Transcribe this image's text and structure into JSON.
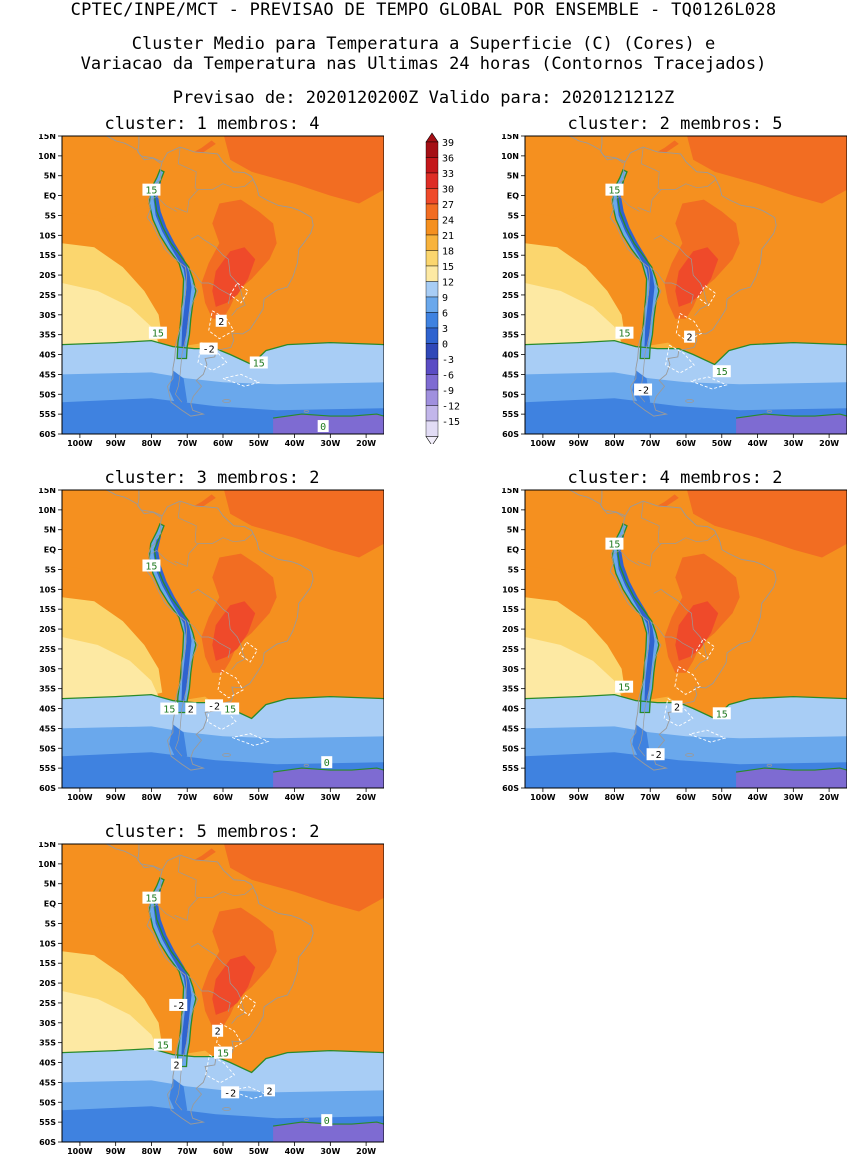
{
  "header": {
    "title": "CPTEC/INPE/MCT - PREVISAO DE TEMPO GLOBAL POR ENSEMBLE - TQ0126L028",
    "subtitle_line1": "Cluster Medio para Temperatura a Superficie (C) (Cores) e",
    "subtitle_line2": "Variacao da Temperatura nas Ultimas 24 horas (Contornos Tracejados)",
    "dates_line": "Previsao de: 2020120200Z   Valido para: 2020121212Z"
  },
  "lat_labels": [
    "15N",
    "10N",
    "5N",
    "EQ",
    "5S",
    "10S",
    "15S",
    "20S",
    "25S",
    "30S",
    "35S",
    "40S",
    "45S",
    "50S",
    "55S",
    "60S"
  ],
  "lon_labels": [
    "100W",
    "90W",
    "80W",
    "70W",
    "60W",
    "50W",
    "40W",
    "30W",
    "20W"
  ],
  "colorbar": {
    "levels": [
      "39",
      "36",
      "33",
      "30",
      "27",
      "24",
      "21",
      "18",
      "15",
      "12",
      "9",
      "6",
      "3",
      "0",
      "-3",
      "-6",
      "-9",
      "-12",
      "-15"
    ],
    "colors": [
      "#a50f15",
      "#c4171b",
      "#de2d26",
      "#ef4a2a",
      "#f26d22",
      "#f5901f",
      "#f8b33c",
      "#fbd66e",
      "#fde9a3",
      "#a8cdf5",
      "#6aa8ec",
      "#3f82e0",
      "#2f63cf",
      "#3048b8",
      "#5a4cc4",
      "#7e6bd2",
      "#a090de",
      "#c2b6ea",
      "#e2dcf5"
    ]
  },
  "clusters": [
    {
      "title": "cluster: 1   membros: 4",
      "labels": [
        {
          "text": "15",
          "kind": "temp"
        },
        {
          "text": "15",
          "kind": "temp"
        },
        {
          "text": "15",
          "kind": "temp"
        },
        {
          "text": "2",
          "kind": "var"
        },
        {
          "text": "-2",
          "kind": "var"
        },
        {
          "text": "0",
          "kind": "temp"
        }
      ]
    },
    {
      "title": "cluster: 2   membros: 5",
      "labels": [
        {
          "text": "15",
          "kind": "temp"
        },
        {
          "text": "15",
          "kind": "temp"
        },
        {
          "text": "15",
          "kind": "temp"
        },
        {
          "text": "2",
          "kind": "var"
        },
        {
          "text": "-2",
          "kind": "var"
        }
      ]
    },
    {
      "title": "cluster: 3   membros: 2",
      "labels": [
        {
          "text": "15",
          "kind": "temp"
        },
        {
          "text": "15",
          "kind": "temp"
        },
        {
          "text": "15",
          "kind": "temp"
        },
        {
          "text": "2",
          "kind": "var"
        },
        {
          "text": "-2",
          "kind": "var"
        },
        {
          "text": "0",
          "kind": "temp"
        }
      ]
    },
    {
      "title": "cluster: 4   membros: 2",
      "labels": [
        {
          "text": "15",
          "kind": "temp"
        },
        {
          "text": "15",
          "kind": "temp"
        },
        {
          "text": "15",
          "kind": "temp"
        },
        {
          "text": "2",
          "kind": "var"
        },
        {
          "text": "-2",
          "kind": "var"
        }
      ]
    },
    {
      "title": "cluster: 5   membros: 2",
      "labels": [
        {
          "text": "15",
          "kind": "temp"
        },
        {
          "text": "15",
          "kind": "temp"
        },
        {
          "text": "15",
          "kind": "temp"
        },
        {
          "text": "-2",
          "kind": "var"
        },
        {
          "text": "2",
          "kind": "var"
        },
        {
          "text": "2",
          "kind": "var"
        },
        {
          "text": "-2",
          "kind": "var"
        },
        {
          "text": "2",
          "kind": "var"
        },
        {
          "text": "0",
          "kind": "temp"
        }
      ]
    }
  ]
}
